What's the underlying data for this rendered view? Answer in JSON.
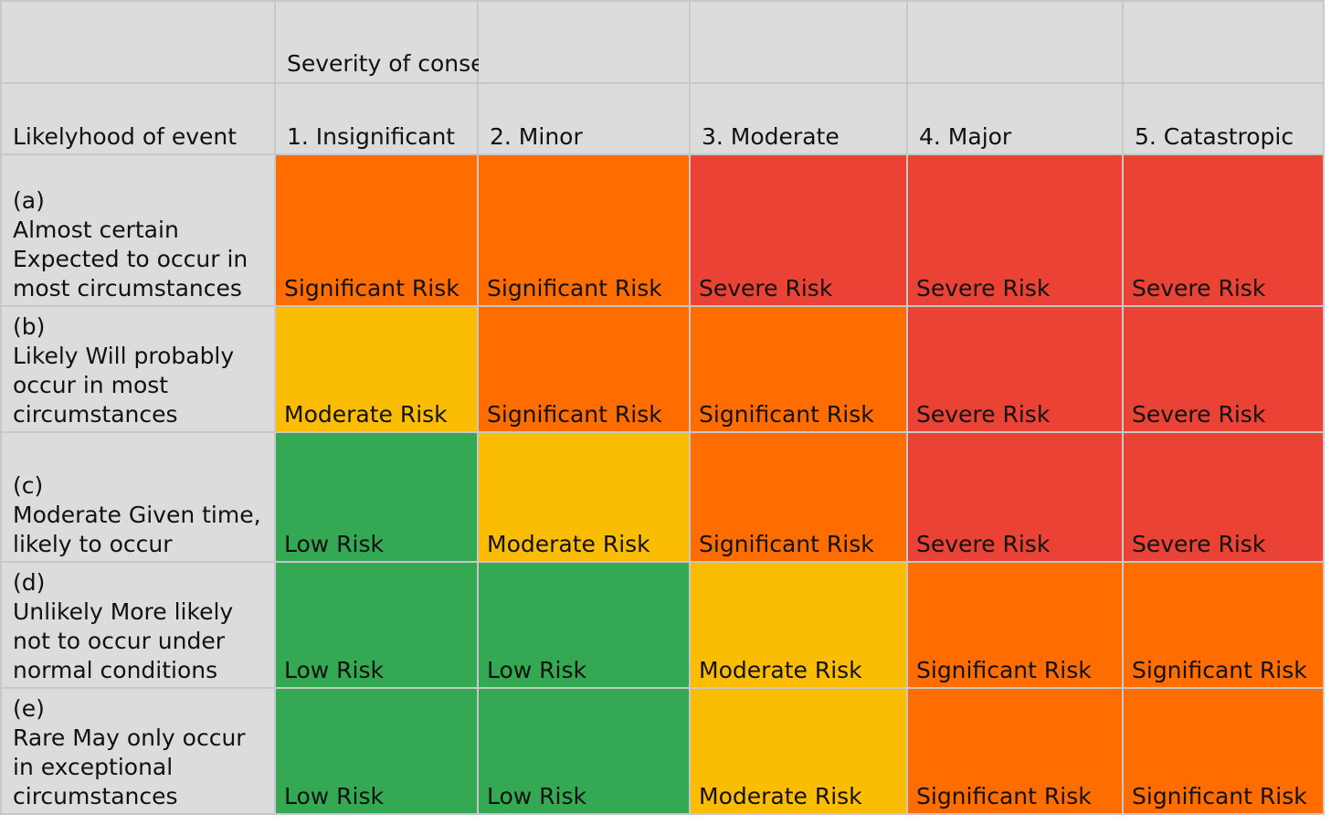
{
  "header": {
    "severity_title": "Severity of consequences",
    "likelihood_title": "Likelyhood of event",
    "columns": [
      "1. Insignificant",
      "2. Minor",
      "3. Moderate",
      "4. Major",
      "5. Catastropic"
    ]
  },
  "colors": {
    "header_bg": "#dcdcdc",
    "low": "#34a853",
    "moderate": "#fbbc04",
    "significant": "#ff6d01",
    "severe": "#ea4335"
  },
  "rows": [
    {
      "label": [
        "(a)",
        "Almost certain",
        "Expected to occur in",
        "most circumstances"
      ],
      "cells": [
        {
          "text": "Significant Risk",
          "level": "significant"
        },
        {
          "text": "Significant Risk",
          "level": "significant"
        },
        {
          "text": "Severe Risk",
          "level": "severe"
        },
        {
          "text": "Severe Risk",
          "level": "severe"
        },
        {
          "text": "Severe Risk",
          "level": "severe"
        }
      ]
    },
    {
      "label": [
        "(b)",
        "Likely Will probably",
        "occur in most",
        "circumstances"
      ],
      "cells": [
        {
          "text": "Moderate Risk",
          "level": "moderate"
        },
        {
          "text": "Significant Risk",
          "level": "significant"
        },
        {
          "text": "Significant Risk",
          "level": "significant"
        },
        {
          "text": "Severe Risk",
          "level": "severe"
        },
        {
          "text": "Severe Risk",
          "level": "severe"
        }
      ]
    },
    {
      "label": [
        "(c)",
        "Moderate Given time,",
        "likely to occur"
      ],
      "cells": [
        {
          "text": "Low Risk",
          "level": "low"
        },
        {
          "text": "Moderate Risk",
          "level": "moderate"
        },
        {
          "text": "Significant Risk",
          "level": "significant"
        },
        {
          "text": "Severe Risk",
          "level": "severe"
        },
        {
          "text": "Severe Risk",
          "level": "severe"
        }
      ]
    },
    {
      "label": [
        "(d)",
        "Unlikely More likely",
        "not to occur under",
        "normal conditions"
      ],
      "cells": [
        {
          "text": "Low Risk",
          "level": "low"
        },
        {
          "text": "Low Risk",
          "level": "low"
        },
        {
          "text": "Moderate Risk",
          "level": "moderate"
        },
        {
          "text": "Significant Risk",
          "level": "significant"
        },
        {
          "text": "Significant Risk",
          "level": "significant"
        }
      ]
    },
    {
      "label": [
        "(e)",
        "Rare May only occur",
        "in exceptional",
        "circumstances"
      ],
      "cells": [
        {
          "text": "Low Risk",
          "level": "low"
        },
        {
          "text": "Low Risk",
          "level": "low"
        },
        {
          "text": "Moderate Risk",
          "level": "moderate"
        },
        {
          "text": "Significant Risk",
          "level": "significant"
        },
        {
          "text": "Significant Risk",
          "level": "significant"
        }
      ]
    }
  ]
}
